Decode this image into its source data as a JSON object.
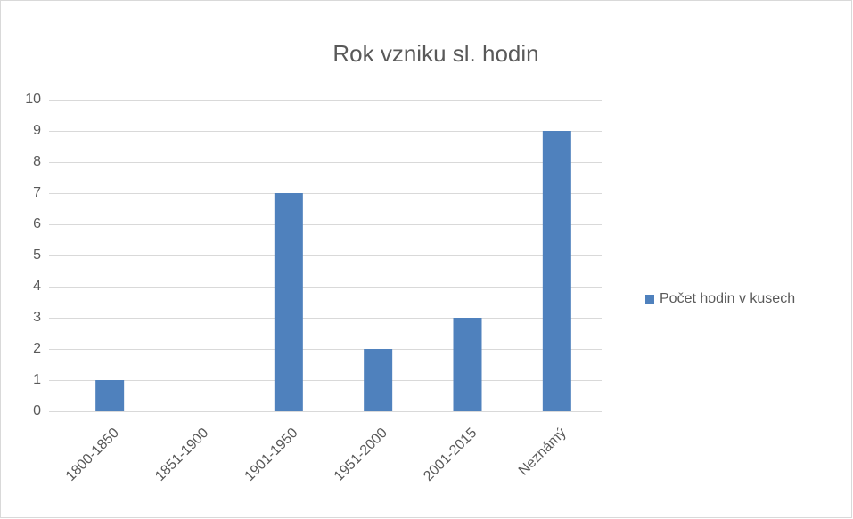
{
  "chart_data": {
    "type": "bar",
    "title": "Rok vzniku sl. hodin",
    "categories": [
      "1800-1850",
      "1851-1900",
      "1901-1950",
      "1951-2000",
      "2001-2015",
      "Neznámý"
    ],
    "series": [
      {
        "name": "Počet hodin v kusech",
        "color": "#4f81bd",
        "values": [
          1,
          0,
          7,
          2,
          3,
          9
        ]
      }
    ],
    "ylim": [
      0,
      10
    ],
    "yticks": [
      0,
      1,
      2,
      3,
      4,
      5,
      6,
      7,
      8,
      9,
      10
    ],
    "grid": true,
    "legend": "right"
  }
}
